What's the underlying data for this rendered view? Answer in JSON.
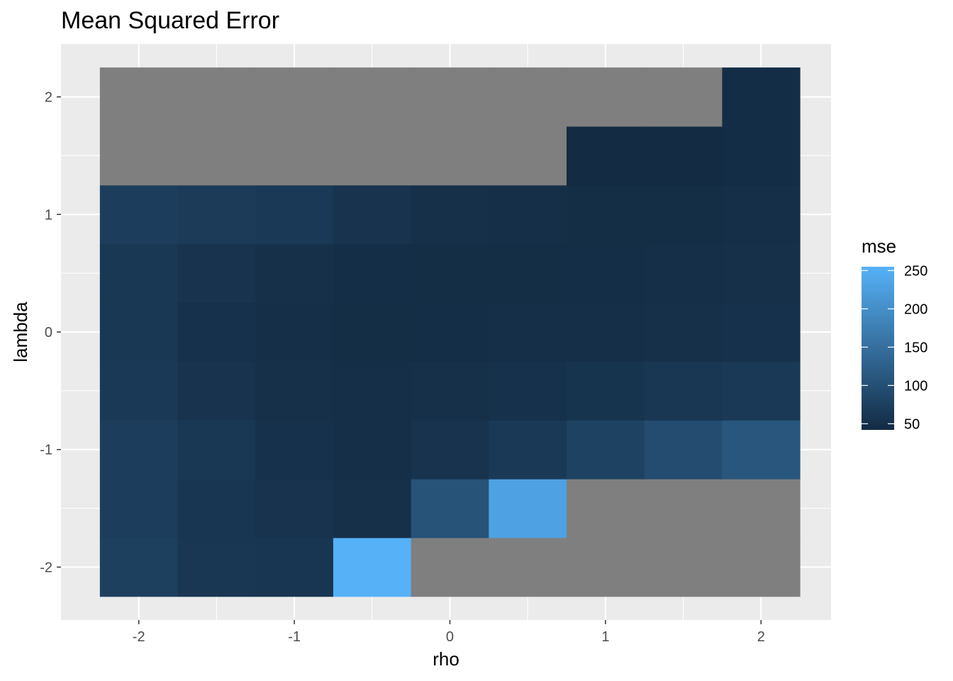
{
  "chart_data": {
    "type": "heatmap",
    "title": "Mean Squared Error",
    "xlabel": "rho",
    "ylabel": "lambda",
    "x": [
      -2,
      -1.5,
      -1,
      -0.5,
      0,
      0.5,
      1,
      1.5,
      2
    ],
    "y": [
      -2,
      -1.5,
      -1,
      -0.5,
      0,
      0.5,
      1,
      1.5,
      2
    ],
    "xlim": [
      -2.5,
      2.45
    ],
    "ylim": [
      -2.45,
      2.45
    ],
    "xticks": [
      -2,
      -1,
      0,
      1,
      2
    ],
    "xtick_labels": [
      "-2",
      "-1",
      "0",
      "1",
      "2"
    ],
    "yticks": [
      -2,
      -1,
      0,
      1,
      2
    ],
    "ytick_labels": [
      "-2",
      "-1",
      "0",
      "1",
      "2"
    ],
    "grid": true,
    "na_color": "#7f7f7f",
    "z": [
      [
        75,
        60,
        58,
        255,
        null,
        null,
        null,
        null,
        null
      ],
      [
        70,
        58,
        55,
        50,
        105,
        230,
        null,
        null,
        null
      ],
      [
        70,
        62,
        52,
        48,
        55,
        65,
        78,
        95,
        110
      ],
      [
        65,
        55,
        50,
        48,
        50,
        52,
        56,
        60,
        64
      ],
      [
        62,
        52,
        48,
        46,
        47,
        48,
        49,
        50,
        51
      ],
      [
        62,
        55,
        50,
        47,
        46,
        46,
        47,
        48,
        50
      ],
      [
        72,
        68,
        64,
        55,
        50,
        48,
        46,
        46,
        48
      ],
      [
        null,
        null,
        null,
        null,
        null,
        null,
        42,
        43,
        45
      ],
      [
        null,
        null,
        null,
        null,
        null,
        null,
        null,
        null,
        45
      ]
    ],
    "legend": {
      "title": "mse",
      "position": "right",
      "ticks": [
        50,
        100,
        150,
        200,
        250
      ],
      "tick_labels": [
        "50",
        "100",
        "150",
        "200",
        "250"
      ],
      "range": [
        42,
        255
      ],
      "low_color": "#132B43",
      "high_color": "#56B1F7"
    }
  }
}
